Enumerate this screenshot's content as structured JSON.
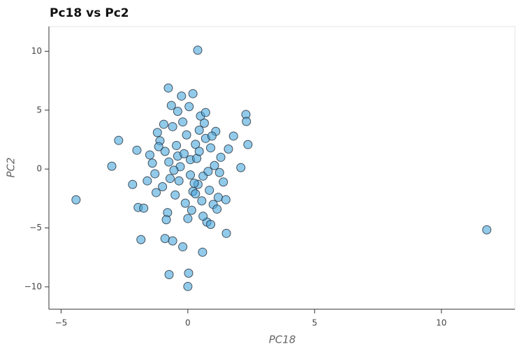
{
  "chart_data": {
    "type": "scatter",
    "title": "Pc18 vs Pc2",
    "x_label": "PC18",
    "y_label": "PC2",
    "color": "#4aa6dc",
    "edge_color": "#1f2a36",
    "xlim": [
      -5.48,
      12.9
    ],
    "ylim": [
      -11.9,
      12.1
    ],
    "xticks": [
      {
        "value": -5,
        "label": "−5"
      },
      0,
      5,
      10
    ],
    "yticks": [
      {
        "value": -10,
        "label": "−10"
      },
      {
        "value": -5,
        "label": "−5"
      },
      0,
      5,
      10
    ],
    "series": [
      {
        "name": "PC2",
        "x": [
          11.79,
          -4.41,
          -3.0,
          -2.73,
          0.39,
          -0.74,
          0.0,
          0.03,
          -1.85,
          0.58,
          1.52,
          2.37,
          2.29,
          2.31,
          2.09,
          -2.18,
          -2.01,
          -1.96,
          -1.74,
          -0.77,
          -1.2,
          -0.9,
          -0.5,
          -0.2,
          0.1,
          0.4,
          0.7,
          1.0,
          1.3,
          -1.0,
          -0.6,
          -0.3,
          0.0,
          0.3,
          0.6,
          0.9,
          1.2,
          -1.4,
          -0.8,
          -0.4,
          0.2,
          0.5,
          0.8,
          1.1,
          -1.1,
          -0.7,
          -0.1,
          0.35,
          0.75,
          1.4,
          -1.3,
          -0.95,
          -0.45,
          0.05,
          0.55,
          1.05,
          -0.85,
          -0.25,
          0.25,
          0.65,
          1.15,
          -1.15,
          -0.55,
          0.15,
          0.85,
          -0.65,
          0.45,
          -0.35,
          0.95,
          -0.05,
          -0.75,
          0.3,
          1.25,
          -1.25,
          0.7,
          -0.15,
          0.6,
          -0.9,
          0.1,
          1.6,
          1.8,
          1.5,
          -1.6,
          -1.5,
          0.2,
          -0.4,
          0.9,
          -0.2,
          0.45,
          -0.6
        ],
        "y": [
          -5.16,
          -2.61,
          0.24,
          2.43,
          10.09,
          -8.96,
          -9.97,
          -8.84,
          -5.99,
          -7.06,
          -5.46,
          2.08,
          4.63,
          4.04,
          0.12,
          -1.31,
          1.6,
          -3.26,
          -3.32,
          6.88,
          3.1,
          1.5,
          -2.2,
          4.0,
          0.8,
          -1.3,
          2.6,
          -3.0,
          1.0,
          -1.5,
          3.6,
          0.2,
          -4.2,
          2.1,
          -0.6,
          1.8,
          -2.4,
          0.5,
          -3.7,
          1.1,
          -1.9,
          4.5,
          -0.2,
          3.2,
          2.4,
          -0.8,
          -2.9,
          0.9,
          -4.5,
          -1.1,
          -0.4,
          3.8,
          2.0,
          5.3,
          -2.7,
          0.3,
          -4.3,
          6.2,
          -1.2,
          3.9,
          -3.4,
          1.9,
          -0.1,
          -3.5,
          -1.8,
          5.4,
          1.5,
          -1.0,
          2.8,
          2.9,
          0.6,
          -2.1,
          -0.3,
          -2.0,
          4.8,
          1.3,
          -4.0,
          -5.9,
          -0.5,
          1.7,
          2.8,
          -2.6,
          -1.0,
          1.2,
          6.4,
          4.9,
          -4.7,
          -6.6,
          3.3,
          -6.1
        ]
      }
    ]
  }
}
